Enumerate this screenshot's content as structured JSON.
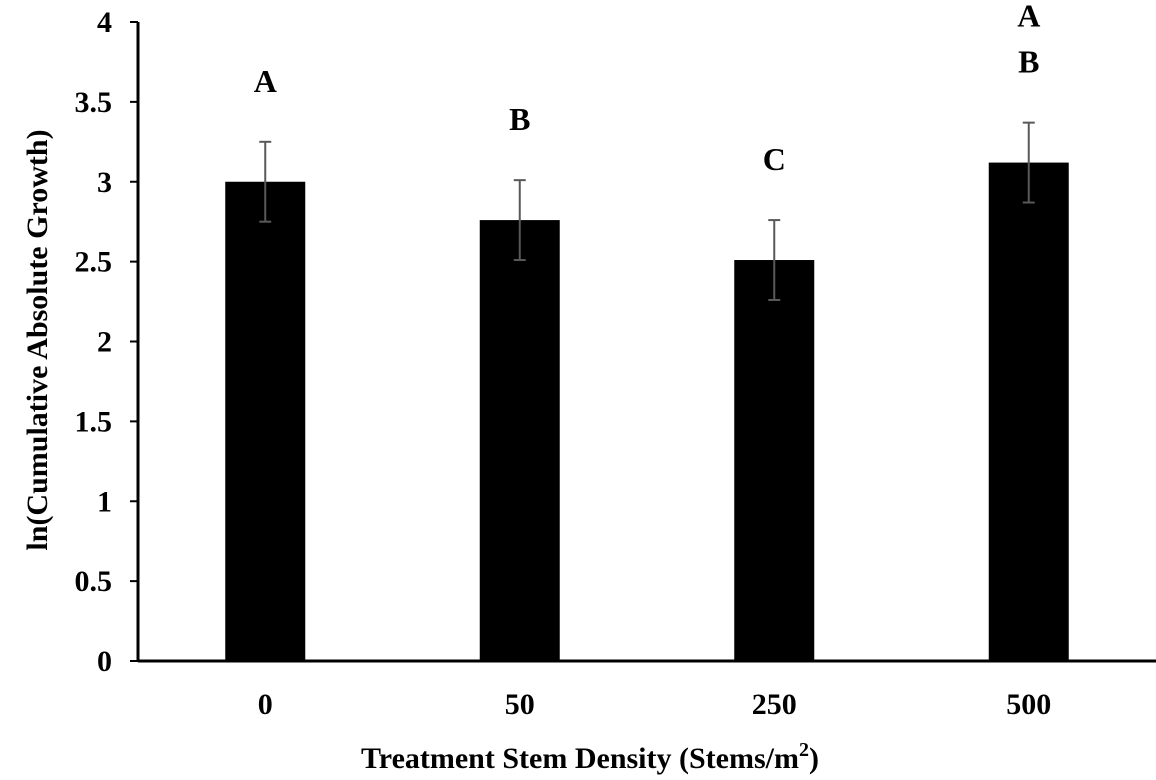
{
  "chart_data": {
    "type": "bar",
    "title": "",
    "xlabel": "Treatment Stem Density (Stems/m",
    "xlabel_sup": "2",
    "xlabel_suffix": ")",
    "ylabel": "ln(Cumulative Absolute Growth)",
    "ylim": [
      0,
      4
    ],
    "yticks": [
      "0",
      "0.5",
      "1",
      "1.5",
      "2",
      "2.5",
      "3",
      "3.5",
      "4"
    ],
    "categories": [
      "0",
      "50",
      "250",
      "500"
    ],
    "values": [
      3.0,
      2.76,
      2.51,
      3.12
    ],
    "errors": [
      0.25,
      0.25,
      0.25,
      0.25
    ],
    "significance_labels": [
      [
        "A"
      ],
      [
        "B"
      ],
      [
        "C"
      ],
      [
        "A",
        "B"
      ]
    ],
    "grid": false,
    "legend": "none",
    "colors": {
      "bar": "#000000",
      "error": "#595959",
      "axis": "#000000"
    }
  }
}
